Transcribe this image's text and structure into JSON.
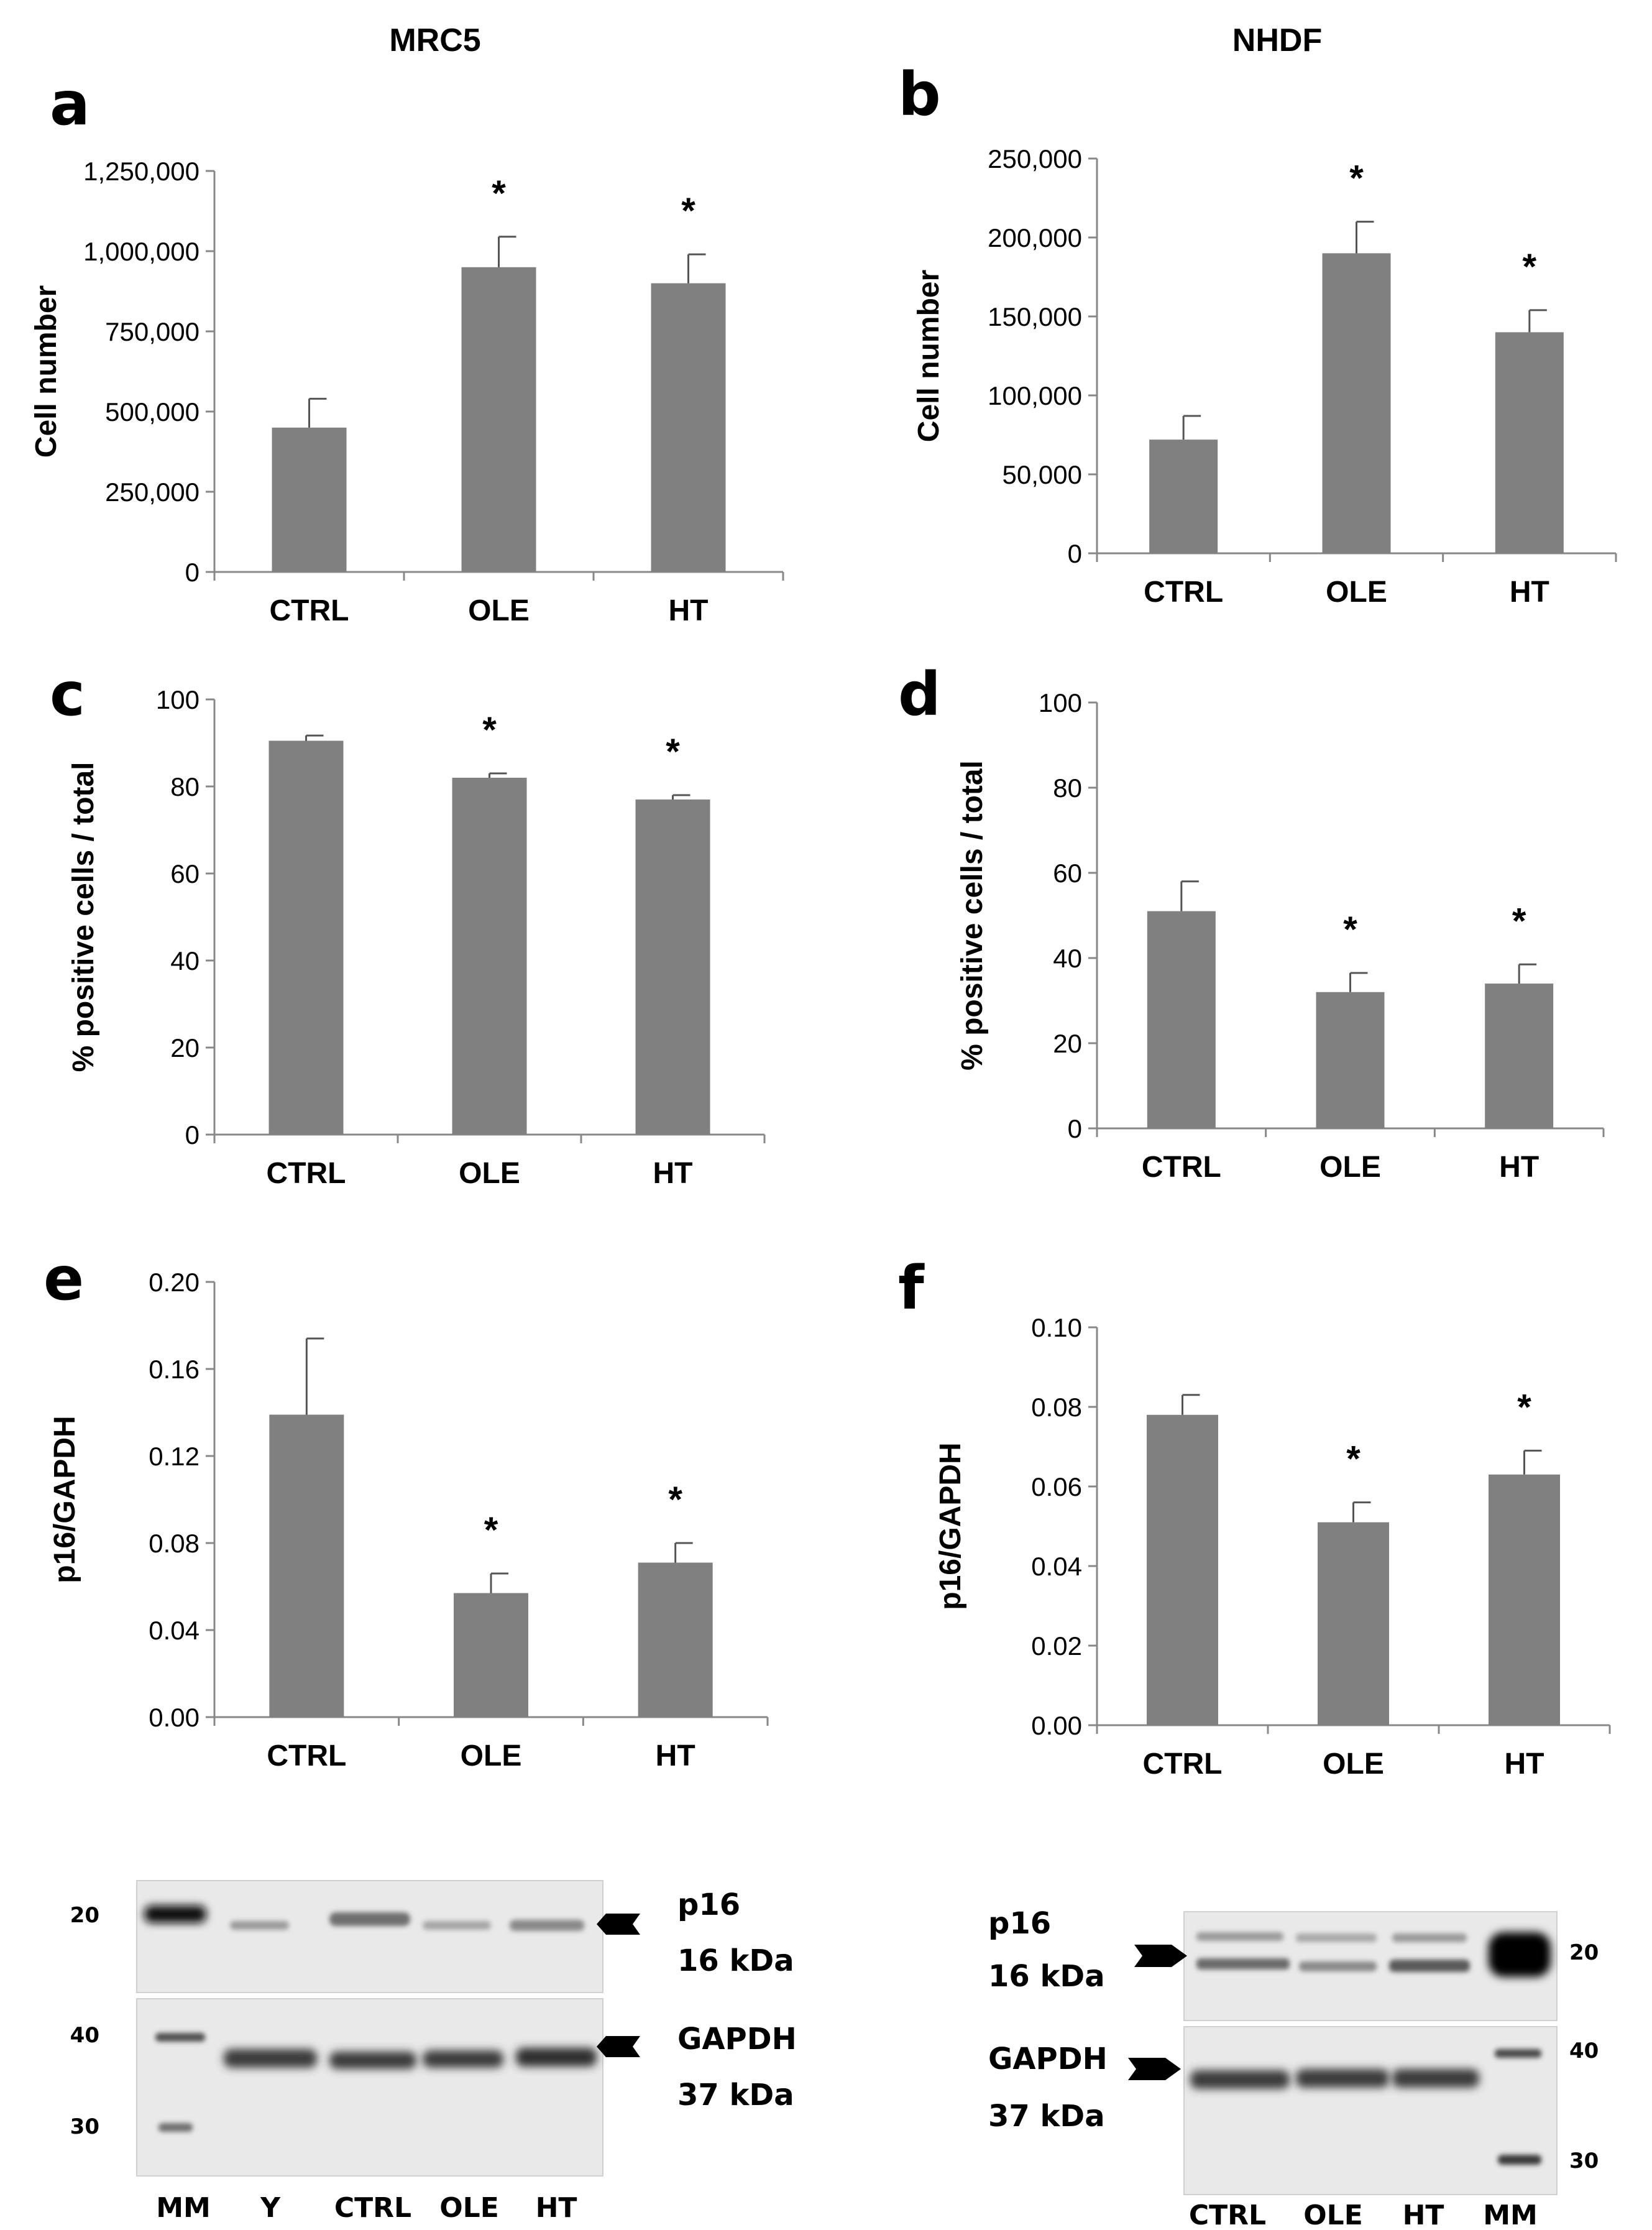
{
  "columns": {
    "left_title": "MRC5",
    "right_title": "NHDF"
  },
  "chart_data": [
    {
      "id": "a",
      "type": "bar",
      "panel_letter": "a",
      "categories": [
        "CTRL",
        "OLE",
        "HT"
      ],
      "values": [
        450000,
        950000,
        900000
      ],
      "errors": [
        90000,
        95000,
        90000
      ],
      "significance": [
        "",
        "*",
        "*"
      ],
      "ylabel": "Cell number",
      "ylim": [
        0,
        1250000
      ],
      "yticks": [
        0,
        250000,
        500000,
        750000,
        1000000,
        1250000
      ],
      "ytick_labels": [
        "0",
        "250,000",
        "500,000",
        "750,000",
        "1,000,000",
        "1,250,000"
      ],
      "bar_color": "#808080"
    },
    {
      "id": "b",
      "type": "bar",
      "panel_letter": "b",
      "categories": [
        "CTRL",
        "OLE",
        "HT"
      ],
      "values": [
        72000,
        190000,
        140000
      ],
      "errors": [
        15000,
        20000,
        14000
      ],
      "significance": [
        "",
        "*",
        "*"
      ],
      "ylabel": "Cell number",
      "ylim": [
        0,
        250000
      ],
      "yticks": [
        0,
        50000,
        100000,
        150000,
        200000,
        250000
      ],
      "ytick_labels": [
        "0",
        "50,000",
        "100,000",
        "150,000",
        "200,000",
        "250,000"
      ],
      "bar_color": "#808080"
    },
    {
      "id": "c",
      "type": "bar",
      "panel_letter": "c",
      "categories": [
        "CTRL",
        "OLE",
        "HT"
      ],
      "values": [
        90.5,
        82,
        77
      ],
      "errors": [
        1.2,
        1.0,
        1.0
      ],
      "significance": [
        "",
        "*",
        "*"
      ],
      "ylabel": "% positive cells / total",
      "ylim": [
        0,
        100
      ],
      "yticks": [
        0,
        20,
        40,
        60,
        80,
        100
      ],
      "ytick_labels": [
        "0",
        "20",
        "40",
        "60",
        "80",
        "100"
      ],
      "bar_color": "#808080"
    },
    {
      "id": "d",
      "type": "bar",
      "panel_letter": "d",
      "categories": [
        "CTRL",
        "OLE",
        "HT"
      ],
      "values": [
        51,
        32,
        34
      ],
      "errors": [
        7,
        4.5,
        4.5
      ],
      "significance": [
        "",
        "*",
        "*"
      ],
      "ylabel": "% positive cells / total",
      "ylim": [
        0,
        100
      ],
      "yticks": [
        0,
        20,
        40,
        60,
        80,
        100
      ],
      "ytick_labels": [
        "0",
        "20",
        "40",
        "60",
        "80",
        "100"
      ],
      "bar_color": "#808080"
    },
    {
      "id": "e",
      "type": "bar",
      "panel_letter": "e",
      "categories": [
        "CTRL",
        "OLE",
        "HT"
      ],
      "values": [
        0.139,
        0.057,
        0.071
      ],
      "errors": [
        0.035,
        0.009,
        0.009
      ],
      "significance": [
        "",
        "*",
        "*"
      ],
      "ylabel": "p16/GAPDH",
      "ylim": [
        0,
        0.2
      ],
      "yticks": [
        0,
        0.04,
        0.08,
        0.12,
        0.16,
        0.2
      ],
      "ytick_labels": [
        "0.00",
        "0.04",
        "0.08",
        "0.12",
        "0.16",
        "0.20"
      ],
      "bar_color": "#808080"
    },
    {
      "id": "f",
      "type": "bar",
      "panel_letter": "f",
      "categories": [
        "CTRL",
        "OLE",
        "HT"
      ],
      "values": [
        0.078,
        0.051,
        0.063
      ],
      "errors": [
        0.005,
        0.005,
        0.006
      ],
      "significance": [
        "",
        "*",
        "*"
      ],
      "ylabel": "p16/GAPDH",
      "ylim": [
        0,
        0.1
      ],
      "yticks": [
        0,
        0.02,
        0.04,
        0.06,
        0.08,
        0.1
      ],
      "ytick_labels": [
        "0.00",
        "0.02",
        "0.04",
        "0.06",
        "0.08",
        "0.10"
      ],
      "bar_color": "#808080"
    }
  ],
  "blots": {
    "left": {
      "p16_label": "p16",
      "p16_size": "16 kDa",
      "gapdh_label": "GAPDH",
      "gapdh_size": "37 kDa",
      "mm_p16": [
        "20"
      ],
      "mm_gapdh": [
        "40",
        "30"
      ],
      "lanes": [
        "MM",
        "Y",
        "CTRL",
        "OLE",
        "HT"
      ]
    },
    "right": {
      "p16_label": "p16",
      "p16_size": "16 kDa",
      "gapdh_label": "GAPDH",
      "gapdh_size": "37 kDa",
      "mm_p16": [
        "20"
      ],
      "mm_gapdh": [
        "40",
        "30"
      ],
      "lanes": [
        "CTRL",
        "OLE",
        "HT",
        "MM"
      ]
    }
  }
}
